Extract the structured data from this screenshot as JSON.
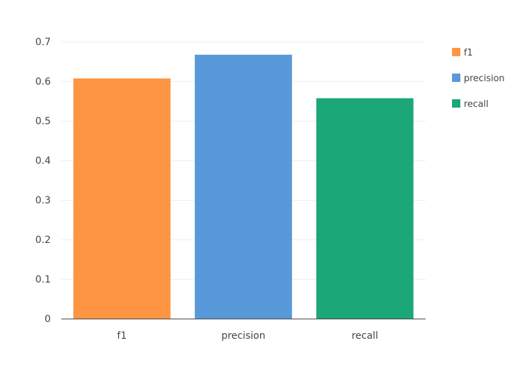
{
  "chart_data": {
    "type": "bar",
    "categories": [
      "f1",
      "precision",
      "recall"
    ],
    "values": [
      0.607,
      0.667,
      0.557
    ],
    "colors": [
      "#FD9543",
      "#5899DA",
      "#1BA778"
    ],
    "title": "",
    "xlabel": "",
    "ylabel": "",
    "ylim": [
      0,
      0.7
    ],
    "yticks": [
      0,
      0.1,
      0.2,
      0.3,
      0.4,
      0.5,
      0.6,
      0.7
    ],
    "ytick_labels": [
      "0",
      "0.1",
      "0.2",
      "0.3",
      "0.4",
      "0.5",
      "0.6",
      "0.7"
    ],
    "grid": true,
    "legend": {
      "placement": "right",
      "entries": [
        "f1",
        "precision",
        "recall"
      ]
    }
  }
}
